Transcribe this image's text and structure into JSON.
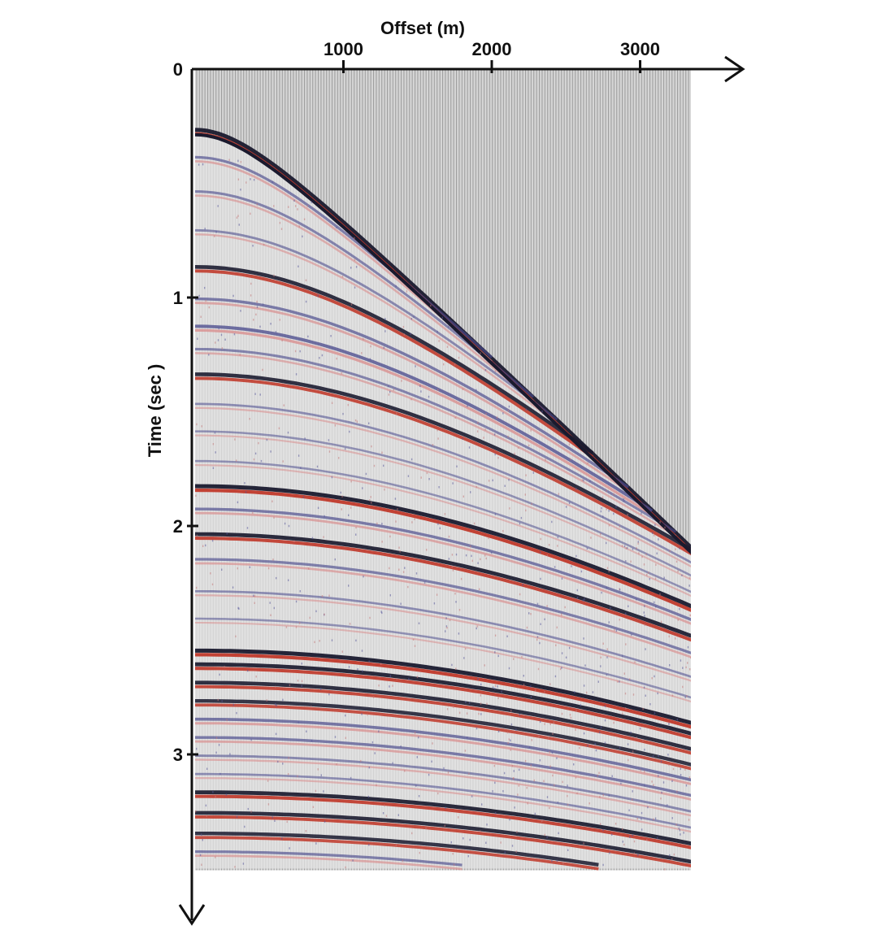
{
  "chart_data": {
    "type": "seismic-gather",
    "xlabel": "Offset (m)",
    "ylabel": "Time (sec )",
    "xlim": [
      0,
      3400
    ],
    "ylim": [
      0,
      3.6
    ],
    "x_ticks": [
      {
        "value": 1000,
        "label": "1000"
      },
      {
        "value": 2000,
        "label": "2000"
      },
      {
        "value": 3000,
        "label": "3000"
      }
    ],
    "y_ticks": [
      {
        "value": 0,
        "label": "0"
      },
      {
        "value": 1,
        "label": "1"
      },
      {
        "value": 2,
        "label": "2"
      },
      {
        "value": 3,
        "label": "3"
      }
    ],
    "trace_extent_offset": 3400,
    "data_end_time": 3.5,
    "first_break": {
      "t0": 0.28,
      "velocity": 1600
    },
    "reflectors": [
      {
        "t0": 0.28,
        "velocity": 1600,
        "amplitude": 1.0
      },
      {
        "t0": 0.4,
        "velocity": 1650,
        "amplitude": 0.5
      },
      {
        "t0": 0.55,
        "velocity": 1700,
        "amplitude": 0.45
      },
      {
        "t0": 0.72,
        "velocity": 1780,
        "amplitude": 0.4
      },
      {
        "t0": 0.88,
        "velocity": 1850,
        "amplitude": 0.9
      },
      {
        "t0": 1.02,
        "velocity": 1900,
        "amplitude": 0.55
      },
      {
        "t0": 1.14,
        "velocity": 1950,
        "amplitude": 0.7
      },
      {
        "t0": 1.24,
        "velocity": 2000,
        "amplitude": 0.45
      },
      {
        "t0": 1.35,
        "velocity": 2050,
        "amplitude": 0.9
      },
      {
        "t0": 1.48,
        "velocity": 2100,
        "amplitude": 0.35
      },
      {
        "t0": 1.6,
        "velocity": 2150,
        "amplitude": 0.3
      },
      {
        "t0": 1.73,
        "velocity": 2200,
        "amplitude": 0.3
      },
      {
        "t0": 1.84,
        "velocity": 2250,
        "amplitude": 1.0
      },
      {
        "t0": 1.94,
        "velocity": 2300,
        "amplitude": 0.55
      },
      {
        "t0": 2.05,
        "velocity": 2350,
        "amplitude": 0.95
      },
      {
        "t0": 2.16,
        "velocity": 2400,
        "amplitude": 0.5
      },
      {
        "t0": 2.3,
        "velocity": 2450,
        "amplitude": 0.35
      },
      {
        "t0": 2.42,
        "velocity": 2500,
        "amplitude": 0.3
      },
      {
        "t0": 2.56,
        "velocity": 2550,
        "amplitude": 1.0
      },
      {
        "t0": 2.62,
        "velocity": 2580,
        "amplitude": 0.95
      },
      {
        "t0": 2.7,
        "velocity": 2600,
        "amplitude": 0.9
      },
      {
        "t0": 2.78,
        "velocity": 2620,
        "amplitude": 0.85
      },
      {
        "t0": 2.86,
        "velocity": 2650,
        "amplitude": 0.6
      },
      {
        "t0": 2.94,
        "velocity": 2680,
        "amplitude": 0.55
      },
      {
        "t0": 3.02,
        "velocity": 2700,
        "amplitude": 0.4
      },
      {
        "t0": 3.1,
        "velocity": 2720,
        "amplitude": 0.35
      },
      {
        "t0": 3.18,
        "velocity": 2750,
        "amplitude": 0.95
      },
      {
        "t0": 3.27,
        "velocity": 2780,
        "amplitude": 0.9
      },
      {
        "t0": 3.36,
        "velocity": 2800,
        "amplitude": 0.85
      },
      {
        "t0": 3.44,
        "velocity": 2820,
        "amplitude": 0.5
      }
    ],
    "colors": {
      "background": "#c8c8c8",
      "trace_line": "#9a9a9a",
      "peak": "#c0392b",
      "trough": "#1a1a2e",
      "weak_peak": "#d98c8c",
      "weak_trough": "#4a4a8c",
      "axis": "#111111"
    },
    "grid": false,
    "legend": "none"
  }
}
